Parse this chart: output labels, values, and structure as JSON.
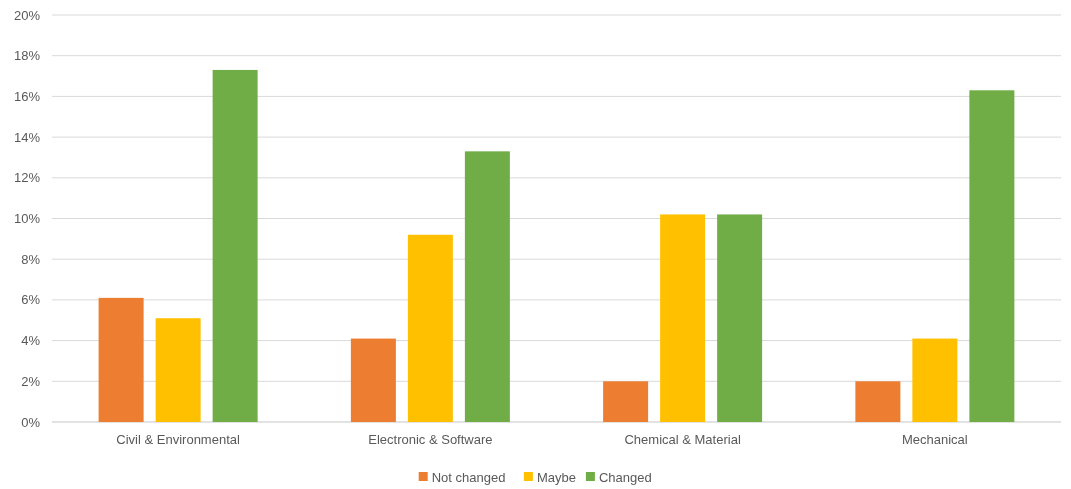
{
  "chart_data": {
    "type": "bar",
    "categories": [
      "Civil & Environmental",
      "Electronic & Software",
      "Chemical & Material",
      "Mechanical"
    ],
    "series": [
      {
        "name": "Not changed",
        "color": "#ed7d31",
        "values": [
          6.1,
          4.1,
          2.0,
          2.0
        ]
      },
      {
        "name": "Maybe",
        "color": "#ffc000",
        "values": [
          5.1,
          9.2,
          10.2,
          4.1
        ]
      },
      {
        "name": "Changed",
        "color": "#70ad47",
        "values": [
          17.3,
          13.3,
          10.2,
          16.3
        ]
      }
    ],
    "ylim": [
      0,
      20
    ],
    "yticks": [
      {
        "value": 0,
        "label": "0%"
      },
      {
        "value": 2,
        "label": "2%"
      },
      {
        "value": 4,
        "label": "4%"
      },
      {
        "value": 6,
        "label": "6%"
      },
      {
        "value": 8,
        "label": "8%"
      },
      {
        "value": 10,
        "label": "10%"
      },
      {
        "value": 12,
        "label": "12%"
      },
      {
        "value": 14,
        "label": "14%"
      },
      {
        "value": 16,
        "label": "16%"
      },
      {
        "value": 18,
        "label": "18%"
      },
      {
        "value": 20,
        "label": "20%"
      }
    ],
    "grid": "y",
    "legend": "bottom"
  }
}
